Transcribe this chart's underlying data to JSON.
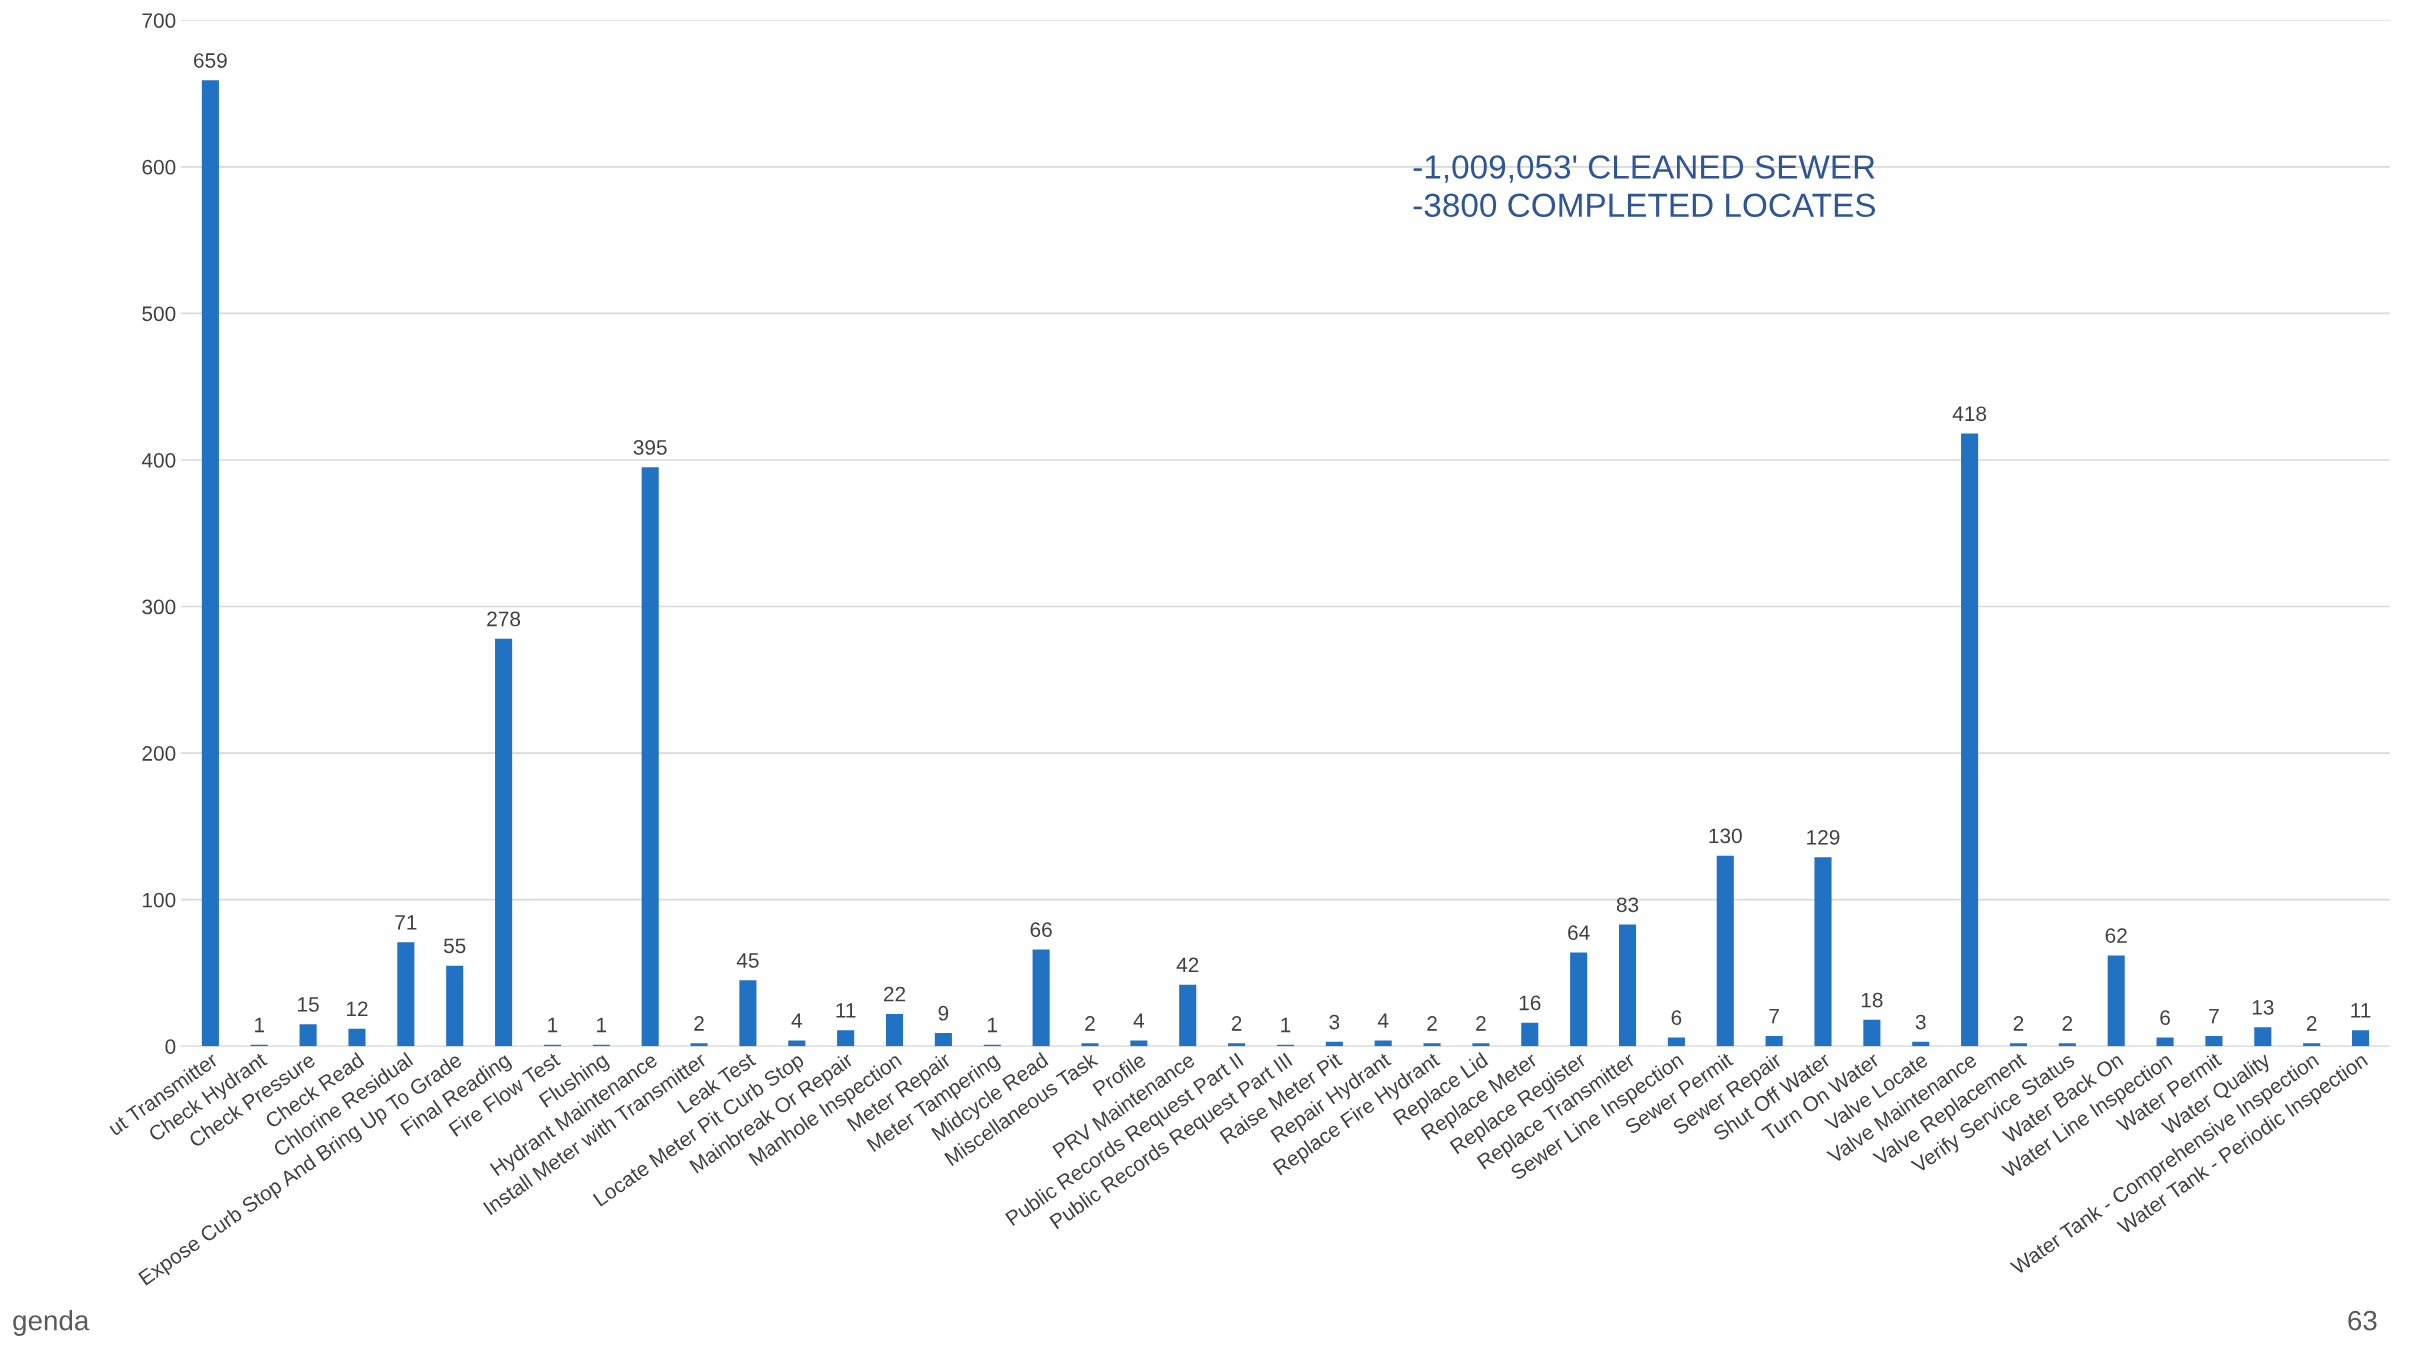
{
  "chart_data": {
    "type": "bar",
    "color": "#2272c3",
    "categories": [
      "ut Transmitter",
      "Check Hydrant",
      "Check Pressure",
      "Check Read",
      "Chlorine Residual",
      "Expose Curb Stop And Bring Up To Grade",
      "Final Reading",
      "Fire Flow Test",
      "Flushing",
      "Hydrant Maintenance",
      "Install Meter with Transmitter",
      "Leak Test",
      "Locate Meter Pit Curb Stop",
      "Mainbreak Or Repair",
      "Manhole Inspection",
      "Meter Repair",
      "Meter Tampering",
      "Midcycle Read",
      "Miscellaneous Task",
      "Profile",
      "PRV Maintenance",
      "Public Records Request Part II",
      "Public Records Request Part III",
      "Raise Meter Pit",
      "Repair Hydrant",
      "Replace Fire Hydrant",
      "Replace Lid",
      "Replace Meter",
      "Replace Register",
      "Replace Transmitter",
      "Sewer Line Inspection",
      "Sewer Permit",
      "Sewer Repair",
      "Shut Off Water",
      "Turn On Water",
      "Valve Locate",
      "Valve Maintenance",
      "Valve Replacement",
      "Verify Service Status",
      "Water Back On",
      "Water Line Inspection",
      "Water Permit",
      "Water Quality",
      "Water Tank - Comprehensive Inspection",
      "Water Tank - Periodic Inspection"
    ],
    "values": [
      659,
      1,
      15,
      12,
      71,
      55,
      278,
      1,
      1,
      395,
      2,
      45,
      4,
      11,
      22,
      9,
      1,
      66,
      2,
      4,
      42,
      2,
      1,
      3,
      4,
      2,
      2,
      16,
      64,
      83,
      6,
      130,
      7,
      129,
      18,
      3,
      418,
      2,
      2,
      62,
      6,
      7,
      13,
      2,
      11
    ],
    "ylim": [
      0,
      700
    ],
    "yticks": [
      0,
      100,
      200,
      300,
      400,
      500,
      600,
      700
    ],
    "grid": "y",
    "data_labels": true,
    "annotations": [
      "-1,009,053' CLEANED SEWER\n-3800 COMPLETED LOCATES",
      "genda",
      "63"
    ]
  }
}
